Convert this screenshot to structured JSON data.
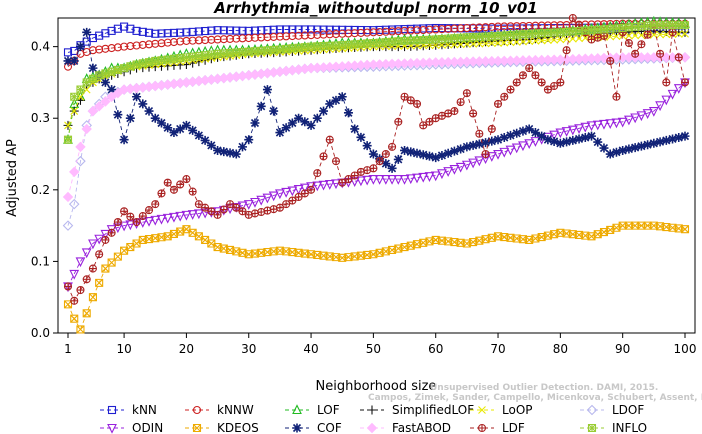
{
  "chart_data": {
    "type": "line",
    "title": "Arrhythmia_withoutdupl_norm_10_v01",
    "xlabel": "Neighborhood size",
    "ylabel": "Adjusted AP",
    "xlim": [
      1,
      100
    ],
    "ylim": [
      0.0,
      0.44
    ],
    "x_ticks": [
      1,
      10,
      20,
      30,
      40,
      50,
      60,
      70,
      80,
      90,
      100
    ],
    "y_ticks": [
      0.0,
      0.1,
      0.2,
      0.3,
      0.4
    ],
    "y_tick_labels": [
      "0.0",
      "0.1",
      "0.2",
      "0.3",
      "0.4"
    ],
    "grid": false,
    "legend_position": "bottom",
    "watermark_lines": [
      "Unsupervised Outlier Detection. DAMI, 2015.",
      "Campos, Zimek, Sander, Campello, Micenkova, Schubert, Assent, Houle"
    ],
    "series_anchors_note": "",
    "series": [
      {
        "name": "kNN",
        "color": "#1f1fd0",
        "marker": "square",
        "dash": "4,3",
        "points": [
          [
            1,
            0.392
          ],
          [
            2,
            0.394
          ],
          [
            3,
            0.402
          ],
          [
            5,
            0.412
          ],
          [
            8,
            0.422
          ],
          [
            10,
            0.428
          ],
          [
            12,
            0.422
          ],
          [
            15,
            0.418
          ],
          [
            20,
            0.42
          ],
          [
            25,
            0.423
          ],
          [
            30,
            0.422
          ],
          [
            35,
            0.424
          ],
          [
            40,
            0.424
          ],
          [
            50,
            0.423
          ],
          [
            60,
            0.426
          ],
          [
            70,
            0.425
          ],
          [
            80,
            0.426
          ],
          [
            90,
            0.427
          ],
          [
            100,
            0.424
          ]
        ]
      },
      {
        "name": "kNNW",
        "color": "#cc2020",
        "marker": "circle",
        "dash": "4,3",
        "points": [
          [
            1,
            0.372
          ],
          [
            2,
            0.38
          ],
          [
            3,
            0.39
          ],
          [
            5,
            0.395
          ],
          [
            8,
            0.398
          ],
          [
            10,
            0.4
          ],
          [
            15,
            0.404
          ],
          [
            20,
            0.408
          ],
          [
            25,
            0.41
          ],
          [
            30,
            0.412
          ],
          [
            40,
            0.416
          ],
          [
            50,
            0.42
          ],
          [
            60,
            0.424
          ],
          [
            70,
            0.428
          ],
          [
            80,
            0.43
          ],
          [
            90,
            0.432
          ],
          [
            100,
            0.432
          ]
        ]
      },
      {
        "name": "LOF",
        "color": "#22bb22",
        "marker": "triangle",
        "dash": "4,3",
        "points": [
          [
            1,
            0.27
          ],
          [
            2,
            0.32
          ],
          [
            3,
            0.33
          ],
          [
            4,
            0.355
          ],
          [
            6,
            0.36
          ],
          [
            8,
            0.37
          ],
          [
            10,
            0.37
          ],
          [
            12,
            0.375
          ],
          [
            15,
            0.38
          ],
          [
            20,
            0.39
          ],
          [
            25,
            0.395
          ],
          [
            30,
            0.395
          ],
          [
            35,
            0.398
          ],
          [
            40,
            0.4
          ],
          [
            45,
            0.405
          ],
          [
            50,
            0.405
          ],
          [
            55,
            0.41
          ],
          [
            60,
            0.41
          ],
          [
            65,
            0.412
          ],
          [
            70,
            0.415
          ],
          [
            75,
            0.418
          ],
          [
            80,
            0.42
          ],
          [
            85,
            0.425
          ],
          [
            90,
            0.43
          ],
          [
            95,
            0.435
          ],
          [
            100,
            0.432
          ]
        ]
      },
      {
        "name": "SimplifiedLOF",
        "color": "#111111",
        "marker": "plus",
        "dash": "4,3",
        "points": [
          [
            1,
            0.29
          ],
          [
            2,
            0.31
          ],
          [
            3,
            0.325
          ],
          [
            4,
            0.345
          ],
          [
            6,
            0.355
          ],
          [
            8,
            0.36
          ],
          [
            10,
            0.365
          ],
          [
            12,
            0.37
          ],
          [
            15,
            0.372
          ],
          [
            20,
            0.375
          ],
          [
            25,
            0.385
          ],
          [
            30,
            0.39
          ],
          [
            35,
            0.392
          ],
          [
            40,
            0.395
          ],
          [
            45,
            0.398
          ],
          [
            50,
            0.4
          ],
          [
            55,
            0.4
          ],
          [
            60,
            0.402
          ],
          [
            65,
            0.405
          ],
          [
            70,
            0.408
          ],
          [
            75,
            0.41
          ],
          [
            80,
            0.415
          ],
          [
            85,
            0.418
          ],
          [
            90,
            0.42
          ],
          [
            95,
            0.422
          ],
          [
            100,
            0.42
          ]
        ]
      },
      {
        "name": "LoOP",
        "color": "#e8e800",
        "marker": "x",
        "dash": "4,3",
        "points": [
          [
            1,
            0.29
          ],
          [
            3,
            0.33
          ],
          [
            5,
            0.35
          ],
          [
            10,
            0.37
          ],
          [
            15,
            0.375
          ],
          [
            20,
            0.38
          ],
          [
            25,
            0.385
          ],
          [
            30,
            0.39
          ],
          [
            40,
            0.395
          ],
          [
            50,
            0.4
          ],
          [
            60,
            0.402
          ],
          [
            70,
            0.405
          ],
          [
            80,
            0.41
          ],
          [
            90,
            0.415
          ],
          [
            100,
            0.418
          ]
        ]
      },
      {
        "name": "LDOF",
        "color": "#b8b8ee",
        "marker": "diamond",
        "dash": "4,3",
        "points": [
          [
            1,
            0.15
          ],
          [
            2,
            0.18
          ],
          [
            3,
            0.24
          ],
          [
            4,
            0.29
          ],
          [
            5,
            0.31
          ],
          [
            7,
            0.33
          ],
          [
            10,
            0.34
          ],
          [
            15,
            0.345
          ],
          [
            20,
            0.35
          ],
          [
            25,
            0.355
          ],
          [
            30,
            0.36
          ],
          [
            35,
            0.365
          ],
          [
            40,
            0.37
          ],
          [
            50,
            0.372
          ],
          [
            60,
            0.375
          ],
          [
            70,
            0.378
          ],
          [
            80,
            0.38
          ],
          [
            90,
            0.382
          ],
          [
            100,
            0.385
          ]
        ]
      },
      {
        "name": "ODIN",
        "color": "#9922dd",
        "marker": "triangle-down",
        "dash": "4,3",
        "points": [
          [
            1,
            0.065
          ],
          [
            3,
            0.1
          ],
          [
            5,
            0.125
          ],
          [
            8,
            0.145
          ],
          [
            10,
            0.15
          ],
          [
            15,
            0.158
          ],
          [
            20,
            0.165
          ],
          [
            25,
            0.17
          ],
          [
            30,
            0.18
          ],
          [
            35,
            0.195
          ],
          [
            40,
            0.205
          ],
          [
            45,
            0.21
          ],
          [
            50,
            0.215
          ],
          [
            55,
            0.215
          ],
          [
            60,
            0.22
          ],
          [
            65,
            0.235
          ],
          [
            70,
            0.25
          ],
          [
            75,
            0.265
          ],
          [
            80,
            0.28
          ],
          [
            85,
            0.29
          ],
          [
            90,
            0.295
          ],
          [
            95,
            0.31
          ],
          [
            100,
            0.35
          ]
        ]
      },
      {
        "name": "KDEOS",
        "color": "#eeaa00",
        "marker": "square-x",
        "dash": "4,3",
        "points": [
          [
            1,
            0.04
          ],
          [
            2,
            0.02
          ],
          [
            3,
            0.005
          ],
          [
            5,
            0.05
          ],
          [
            7,
            0.09
          ],
          [
            10,
            0.115
          ],
          [
            13,
            0.13
          ],
          [
            17,
            0.135
          ],
          [
            20,
            0.145
          ],
          [
            25,
            0.12
          ],
          [
            30,
            0.11
          ],
          [
            35,
            0.115
          ],
          [
            40,
            0.11
          ],
          [
            45,
            0.105
          ],
          [
            50,
            0.11
          ],
          [
            55,
            0.12
          ],
          [
            60,
            0.13
          ],
          [
            65,
            0.125
          ],
          [
            70,
            0.135
          ],
          [
            75,
            0.13
          ],
          [
            80,
            0.14
          ],
          [
            85,
            0.135
          ],
          [
            90,
            0.15
          ],
          [
            95,
            0.15
          ],
          [
            100,
            0.145
          ]
        ]
      },
      {
        "name": "COF",
        "color": "#112277",
        "marker": "star",
        "dash": "4,3",
        "points": [
          [
            1,
            0.38
          ],
          [
            2,
            0.38
          ],
          [
            3,
            0.4
          ],
          [
            4,
            0.42
          ],
          [
            5,
            0.37
          ],
          [
            6,
            0.36
          ],
          [
            8,
            0.34
          ],
          [
            10,
            0.27
          ],
          [
            12,
            0.33
          ],
          [
            15,
            0.3
          ],
          [
            18,
            0.28
          ],
          [
            20,
            0.29
          ],
          [
            25,
            0.255
          ],
          [
            28,
            0.25
          ],
          [
            30,
            0.27
          ],
          [
            33,
            0.34
          ],
          [
            35,
            0.28
          ],
          [
            38,
            0.3
          ],
          [
            40,
            0.29
          ],
          [
            43,
            0.32
          ],
          [
            45,
            0.33
          ],
          [
            47,
            0.285
          ],
          [
            50,
            0.25
          ],
          [
            53,
            0.23
          ],
          [
            55,
            0.255
          ],
          [
            60,
            0.245
          ],
          [
            65,
            0.26
          ],
          [
            70,
            0.27
          ],
          [
            75,
            0.285
          ],
          [
            78,
            0.27
          ],
          [
            80,
            0.265
          ],
          [
            85,
            0.275
          ],
          [
            88,
            0.25
          ],
          [
            90,
            0.255
          ],
          [
            95,
            0.265
          ],
          [
            100,
            0.275
          ]
        ]
      },
      {
        "name": "FastABOD",
        "color": "#ffbbff",
        "marker": "diamond-filled",
        "dash": "4,3",
        "points": [
          [
            1,
            0.19
          ],
          [
            3,
            0.26
          ],
          [
            5,
            0.31
          ],
          [
            8,
            0.33
          ],
          [
            10,
            0.34
          ],
          [
            15,
            0.345
          ],
          [
            20,
            0.35
          ],
          [
            25,
            0.355
          ],
          [
            30,
            0.36
          ],
          [
            40,
            0.37
          ],
          [
            50,
            0.375
          ],
          [
            60,
            0.378
          ],
          [
            70,
            0.38
          ],
          [
            80,
            0.382
          ],
          [
            90,
            0.385
          ],
          [
            100,
            0.385
          ]
        ]
      },
      {
        "name": "LDF",
        "color": "#aa2222",
        "marker": "circle-plus",
        "dash": "4,3",
        "points": [
          [
            1,
            0.065
          ],
          [
            2,
            0.045
          ],
          [
            3,
            0.06
          ],
          [
            5,
            0.09
          ],
          [
            7,
            0.13
          ],
          [
            8,
            0.14
          ],
          [
            10,
            0.17
          ],
          [
            12,
            0.155
          ],
          [
            15,
            0.18
          ],
          [
            17,
            0.21
          ],
          [
            18,
            0.2
          ],
          [
            20,
            0.215
          ],
          [
            22,
            0.18
          ],
          [
            25,
            0.165
          ],
          [
            27,
            0.18
          ],
          [
            30,
            0.165
          ],
          [
            35,
            0.175
          ],
          [
            40,
            0.2
          ],
          [
            43,
            0.27
          ],
          [
            45,
            0.21
          ],
          [
            48,
            0.225
          ],
          [
            50,
            0.23
          ],
          [
            53,
            0.26
          ],
          [
            55,
            0.33
          ],
          [
            57,
            0.32
          ],
          [
            58,
            0.29
          ],
          [
            60,
            0.3
          ],
          [
            63,
            0.31
          ],
          [
            65,
            0.335
          ],
          [
            68,
            0.25
          ],
          [
            70,
            0.32
          ],
          [
            73,
            0.35
          ],
          [
            75,
            0.37
          ],
          [
            78,
            0.34
          ],
          [
            80,
            0.35
          ],
          [
            82,
            0.44
          ],
          [
            85,
            0.41
          ],
          [
            87,
            0.415
          ],
          [
            88,
            0.38
          ],
          [
            89,
            0.33
          ],
          [
            90,
            0.42
          ],
          [
            92,
            0.39
          ],
          [
            95,
            0.43
          ],
          [
            97,
            0.35
          ],
          [
            98,
            0.42
          ],
          [
            100,
            0.35
          ]
        ]
      },
      {
        "name": "INFLO",
        "color": "#99cc33",
        "marker": "square-star",
        "dash": "4,3",
        "points": [
          [
            1,
            0.27
          ],
          [
            2,
            0.33
          ],
          [
            3,
            0.34
          ],
          [
            4,
            0.35
          ],
          [
            6,
            0.36
          ],
          [
            8,
            0.365
          ],
          [
            10,
            0.37
          ],
          [
            12,
            0.375
          ],
          [
            15,
            0.38
          ],
          [
            20,
            0.385
          ],
          [
            25,
            0.39
          ],
          [
            30,
            0.393
          ],
          [
            35,
            0.396
          ],
          [
            40,
            0.4
          ],
          [
            45,
            0.402
          ],
          [
            50,
            0.405
          ],
          [
            55,
            0.408
          ],
          [
            60,
            0.41
          ],
          [
            65,
            0.413
          ],
          [
            70,
            0.415
          ],
          [
            75,
            0.418
          ],
          [
            80,
            0.42
          ],
          [
            85,
            0.423
          ],
          [
            90,
            0.426
          ],
          [
            95,
            0.43
          ],
          [
            100,
            0.43
          ]
        ]
      }
    ]
  }
}
